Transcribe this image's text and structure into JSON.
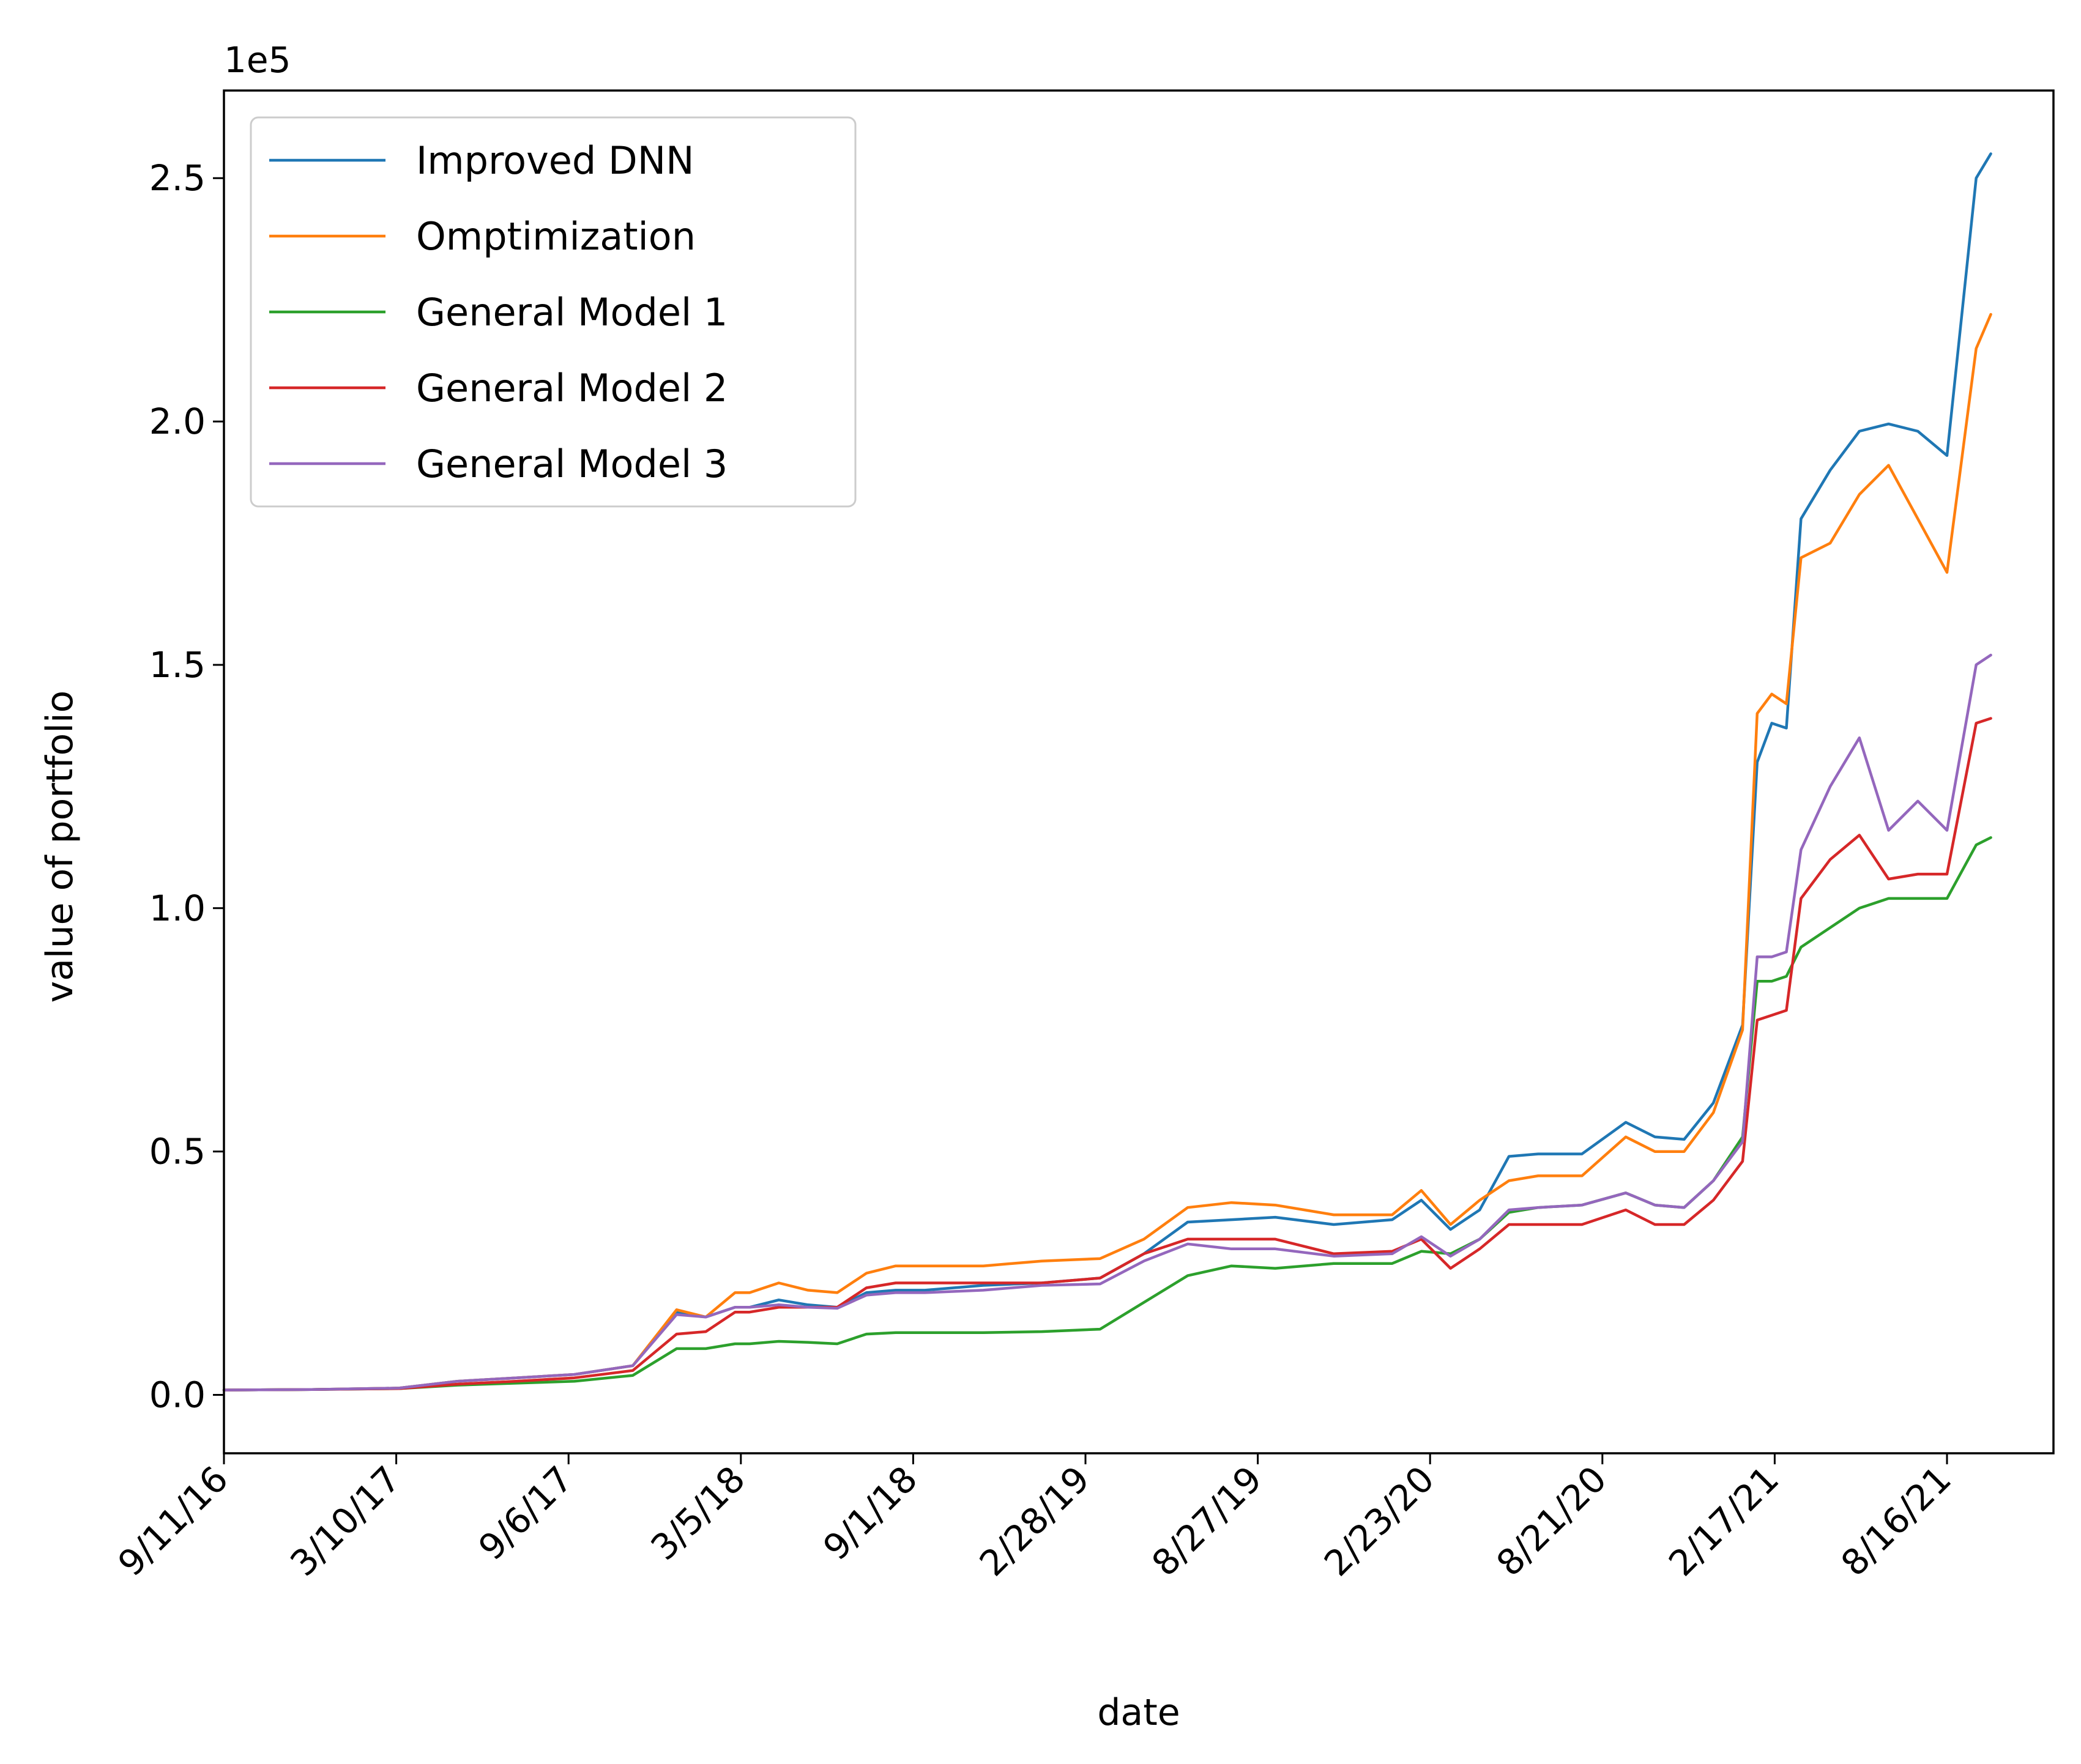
{
  "chart_data": {
    "type": "line",
    "xlabel": "date",
    "ylabel": "value of portfolio",
    "y_exponent_label": "1e5",
    "x_tick_labels": [
      "9/11/16",
      "3/10/17",
      "9/6/17",
      "3/5/18",
      "9/1/18",
      "2/28/19",
      "8/27/19",
      "2/23/20",
      "8/21/20",
      "2/17/21",
      "8/16/21"
    ],
    "x_range": [
      "9/11/16",
      "8/16/21"
    ],
    "ylim": [
      -0.12,
      2.68
    ],
    "y_ticks": [
      0.0,
      0.5,
      1.0,
      1.5,
      2.0,
      2.5
    ],
    "y_tick_labels": [
      "0.0",
      "0.5",
      "1.0",
      "1.5",
      "2.0",
      "2.5"
    ],
    "legend_position": "upper-left",
    "grid": false,
    "x": [
      "9/11/16",
      "12/10/16",
      "3/10/17",
      "5/9/17",
      "7/8/17",
      "9/6/17",
      "11/5/17",
      "12/20/17",
      "1/19/18",
      "2/18/18",
      "3/5/18",
      "4/4/18",
      "5/4/18",
      "6/3/18",
      "7/3/18",
      "8/2/18",
      "9/1/18",
      "10/31/18",
      "12/30/18",
      "2/28/19",
      "4/14/19",
      "5/29/19",
      "7/13/19",
      "8/27/19",
      "10/26/19",
      "12/25/19",
      "1/24/20",
      "2/23/20",
      "3/24/20",
      "4/23/20",
      "5/23/20",
      "7/7/20",
      "8/21/20",
      "9/20/20",
      "10/20/20",
      "11/19/20",
      "12/19/20",
      "1/3/21",
      "1/18/21",
      "2/2/21",
      "2/17/21",
      "3/19/21",
      "4/18/21",
      "5/18/21",
      "6/17/21",
      "7/17/21",
      "8/16/21",
      "8/31/21"
    ],
    "series": [
      {
        "name": "Improved DNN",
        "color": "#1f77b4",
        "values": [
          0.01,
          0.011,
          0.014,
          0.028,
          0.035,
          0.042,
          0.06,
          0.17,
          0.16,
          0.18,
          0.18,
          0.195,
          0.185,
          0.18,
          0.21,
          0.215,
          0.215,
          0.225,
          0.23,
          0.24,
          0.29,
          0.355,
          0.36,
          0.365,
          0.35,
          0.36,
          0.4,
          0.34,
          0.38,
          0.49,
          0.495,
          0.495,
          0.56,
          0.53,
          0.525,
          0.6,
          0.76,
          1.3,
          1.38,
          1.37,
          1.8,
          1.9,
          1.98,
          1.995,
          1.98,
          1.93,
          2.5,
          2.55
        ]
      },
      {
        "name": "Omptimization",
        "color": "#ff7f0e",
        "values": [
          0.01,
          0.011,
          0.014,
          0.028,
          0.035,
          0.042,
          0.06,
          0.175,
          0.16,
          0.21,
          0.21,
          0.23,
          0.215,
          0.21,
          0.25,
          0.265,
          0.265,
          0.265,
          0.275,
          0.28,
          0.32,
          0.385,
          0.395,
          0.39,
          0.37,
          0.37,
          0.42,
          0.35,
          0.4,
          0.44,
          0.45,
          0.45,
          0.53,
          0.5,
          0.5,
          0.58,
          0.75,
          1.4,
          1.44,
          1.42,
          1.72,
          1.75,
          1.85,
          1.91,
          1.8,
          1.69,
          2.15,
          2.22
        ]
      },
      {
        "name": "General Model 1",
        "color": "#2ca02c",
        "values": [
          0.01,
          0.011,
          0.013,
          0.02,
          0.024,
          0.028,
          0.04,
          0.095,
          0.095,
          0.105,
          0.105,
          0.11,
          0.108,
          0.105,
          0.125,
          0.128,
          0.128,
          0.128,
          0.13,
          0.135,
          0.19,
          0.245,
          0.265,
          0.26,
          0.27,
          0.27,
          0.295,
          0.29,
          0.32,
          0.375,
          0.385,
          0.39,
          0.415,
          0.39,
          0.385,
          0.44,
          0.53,
          0.85,
          0.85,
          0.86,
          0.92,
          0.96,
          1.0,
          1.02,
          1.02,
          1.02,
          1.13,
          1.145
        ]
      },
      {
        "name": "General Model 2",
        "color": "#d62728",
        "values": [
          0.01,
          0.011,
          0.013,
          0.022,
          0.028,
          0.035,
          0.05,
          0.125,
          0.13,
          0.17,
          0.17,
          0.18,
          0.18,
          0.18,
          0.22,
          0.23,
          0.23,
          0.23,
          0.23,
          0.24,
          0.29,
          0.32,
          0.32,
          0.32,
          0.29,
          0.295,
          0.32,
          0.26,
          0.3,
          0.35,
          0.35,
          0.35,
          0.38,
          0.35,
          0.35,
          0.4,
          0.48,
          0.77,
          0.78,
          0.79,
          1.02,
          1.1,
          1.15,
          1.06,
          1.07,
          1.07,
          1.38,
          1.39
        ]
      },
      {
        "name": "General Model 3",
        "color": "#9467bd",
        "values": [
          0.01,
          0.011,
          0.014,
          0.028,
          0.035,
          0.042,
          0.06,
          0.165,
          0.16,
          0.18,
          0.18,
          0.185,
          0.18,
          0.178,
          0.205,
          0.21,
          0.21,
          0.215,
          0.225,
          0.228,
          0.275,
          0.31,
          0.3,
          0.3,
          0.285,
          0.29,
          0.325,
          0.285,
          0.32,
          0.38,
          0.385,
          0.39,
          0.415,
          0.39,
          0.385,
          0.44,
          0.52,
          0.9,
          0.9,
          0.91,
          1.12,
          1.25,
          1.35,
          1.16,
          1.22,
          1.16,
          1.5,
          1.52
        ]
      }
    ]
  }
}
